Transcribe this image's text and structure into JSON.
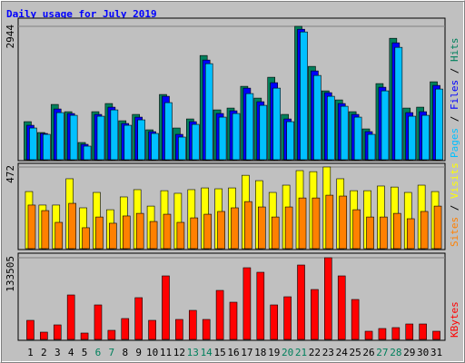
{
  "chart_data": [
    {
      "type": "bar",
      "title": "Daily usage for July 2019",
      "legend_separator": " / ",
      "ylim": [
        0,
        2944
      ],
      "yticks": [
        2944
      ],
      "series": [
        {
          "name": "Hits",
          "color": "#00805c",
          "values": [
            840,
            600,
            1220,
            1060,
            380,
            1060,
            1240,
            860,
            1000,
            660,
            1440,
            700,
            900,
            2300,
            1100,
            1140,
            1620,
            1360,
            1820,
            1000,
            2944,
            2060,
            1520,
            1320,
            1060,
            680,
            1680,
            2680,
            1140,
            1160,
            1720
          ]
        },
        {
          "name": "Files",
          "color": "#0000ff",
          "values": [
            760,
            580,
            1120,
            1020,
            340,
            1000,
            1160,
            800,
            940,
            620,
            1400,
            560,
            840,
            2200,
            1020,
            1080,
            1580,
            1280,
            1700,
            900,
            2880,
            1960,
            1480,
            1240,
            1000,
            620,
            1600,
            2580,
            1040,
            1060,
            1640
          ]
        },
        {
          "name": "Pages",
          "color": "#00c0ff",
          "values": [
            700,
            560,
            1040,
            980,
            300,
            960,
            1100,
            760,
            880,
            580,
            1260,
            500,
            780,
            2120,
            940,
            1020,
            1460,
            1200,
            1580,
            840,
            2820,
            1860,
            1400,
            1180,
            940,
            560,
            1520,
            2480,
            960,
            980,
            1560
          ]
        }
      ]
    },
    {
      "type": "bar",
      "legend_separator": " / ",
      "ylim": [
        0,
        472
      ],
      "yticks": [
        472
      ],
      "series": [
        {
          "name": "Visits",
          "color": "#ffff00",
          "values": [
            330,
            252,
            252,
            404,
            236,
            325,
            225,
            299,
            341,
            246,
            335,
            320,
            341,
            351,
            346,
            351,
            424,
            393,
            325,
            367,
            451,
            445,
            472,
            404,
            335,
            335,
            362,
            356,
            325,
            367,
            330
          ]
        },
        {
          "name": "Sites",
          "color": "#ff8000",
          "values": [
            252,
            220,
            152,
            262,
            121,
            183,
            147,
            189,
            204,
            157,
            199,
            152,
            178,
            199,
            215,
            236,
            272,
            241,
            183,
            241,
            293,
            293,
            309,
            304,
            225,
            183,
            183,
            204,
            173,
            215,
            246
          ]
        }
      ]
    },
    {
      "type": "bar",
      "ylim": [
        0,
        133505
      ],
      "yticks": [
        133505
      ],
      "categories": [
        "1",
        "2",
        "3",
        "4",
        "5",
        "6",
        "7",
        "8",
        "9",
        "10",
        "11",
        "12",
        "13",
        "14",
        "15",
        "16",
        "17",
        "18",
        "19",
        "20",
        "21",
        "22",
        "23",
        "24",
        "25",
        "26",
        "27",
        "28",
        "29",
        "30",
        "31"
      ],
      "category_colors": [
        "#000",
        "#000",
        "#000",
        "#000",
        "#000",
        "#00805c",
        "#00805c",
        "#000",
        "#000",
        "#000",
        "#000",
        "#000",
        "#00805c",
        "#00805c",
        "#000",
        "#000",
        "#000",
        "#000",
        "#000",
        "#00805c",
        "#00805c",
        "#000",
        "#000",
        "#000",
        "#000",
        "#000",
        "#00805c",
        "#00805c",
        "#000",
        "#000",
        "#000"
      ],
      "series": [
        {
          "name": "KBytes",
          "color": "#ff0000",
          "values": [
            31150,
            11870,
            23730,
            72670,
            10380,
            56360,
            14830,
            34110,
            68220,
            31150,
            103820,
            32630,
            47460,
            32630,
            80090,
            60810,
            117160,
            109750,
            56360,
            69700,
            121610,
            81570,
            133505,
            103820,
            65260,
            13350,
            17800,
            19280,
            25210,
            25210,
            13350
          ]
        }
      ]
    }
  ]
}
